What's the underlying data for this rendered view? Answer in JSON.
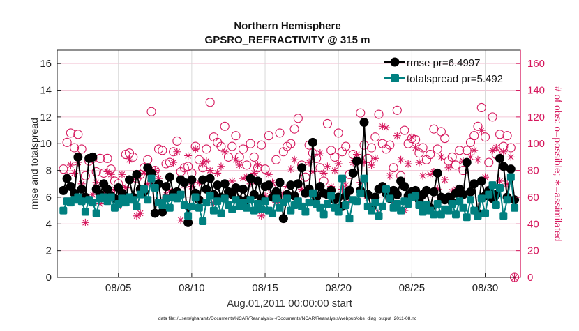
{
  "chart_data": {
    "type": "line",
    "title": [
      "Northern Hemisphere",
      "GPSRO_REFRACTIVITY @ 315 m"
    ],
    "xlabel": "Aug.01,2011 00:00:00 start",
    "ylabel": "rmse and totalspread",
    "ylabel_right": "# of obs: o=possible; ∗=assimilated",
    "footnote": "data file: /Users/gharamti/Documents/NCAR/Reanalysis/~/Documents/NCAR/Reanalysis/webpub/obs_diag_output_2011-08.nc",
    "x_units": "days since Aug.01,2011 00:00:00",
    "x_start_day": 0.25,
    "x_step_day": 0.25,
    "xlim": [
      -0.17,
      31.4
    ],
    "ylim": [
      0,
      17
    ],
    "ylim_right": [
      0,
      170
    ],
    "x_ticks": [
      {
        "day": 4,
        "label": "08/05"
      },
      {
        "day": 9,
        "label": "08/10"
      },
      {
        "day": 14,
        "label": "08/15"
      },
      {
        "day": 19,
        "label": "08/20"
      },
      {
        "day": 24,
        "label": "08/25"
      },
      {
        "day": 29,
        "label": "08/30"
      }
    ],
    "y_ticks": [
      "0",
      "2",
      "4",
      "6",
      "8",
      "10",
      "12",
      "14",
      "16"
    ],
    "y_ticks_right": [
      "0",
      "20",
      "40",
      "60",
      "80",
      "100",
      "120",
      "140",
      "160"
    ],
    "grid": true,
    "legend_position": "top-right",
    "colors": {
      "rmse": "#000000",
      "totalspread": "#008080",
      "obs": "#d6175d",
      "grid_h": "#f3c6d6",
      "grid_v": "#d9d9d9"
    },
    "series": [
      {
        "name": "rmse pr=6.4997",
        "axis": "left",
        "marker": "filled-circle",
        "values": [
          6.5,
          7.4,
          6.8,
          6.3,
          9.0,
          6.6,
          6.0,
          8.9,
          9.0,
          6.6,
          6.2,
          7.0,
          6.6,
          6.1,
          5.9,
          6.7,
          6.3,
          5.8,
          7.3,
          6.0,
          7.7,
          6.6,
          6.4,
          8.2,
          7.8,
          4.8,
          7.0,
          4.9,
          6.8,
          7.5,
          6.3,
          6.4,
          7.3,
          7.1,
          4.1,
          7.3,
          6.3,
          5.8,
          7.3,
          6.6,
          7.4,
          6.2,
          6.9,
          6.0,
          7.0,
          6.4,
          6.2,
          6.7,
          5.8,
          6.6,
          5.8,
          7.4,
          6.2,
          7.2,
          5.9,
          6.8,
          6.9,
          6.0,
          6.4,
          7.1,
          4.4,
          6.2,
          6.9,
          6.1,
          7.0,
          8.2,
          6.3,
          6.6,
          10.1,
          6.0,
          6.8,
          6.3,
          6.2,
          6.5,
          5.8,
          6.0,
          5.3,
          6.1,
          6.5,
          7.8,
          8.7,
          6.5,
          11.6,
          6.2,
          5.2,
          6.0,
          6.6,
          6.8,
          6.3,
          5.9,
          6.5,
          6.2,
          7.2,
          6.8,
          6.1,
          6.4,
          6.5,
          5.8,
          6.2,
          6.5,
          5.2,
          6.4,
          7.8,
          6.0,
          5.8,
          6.0,
          5.6,
          6.3,
          6.6,
          6.2,
          8.6,
          6.4,
          7.0,
          4.8,
          7.2,
          6.1,
          6.5,
          5.9,
          6.2,
          8.9,
          8.3,
          6.0,
          8.1,
          5.8
        ]
      },
      {
        "name": "totalspread pr=5.492",
        "axis": "left",
        "marker": "filled-square",
        "values": [
          5.0,
          5.7,
          5.6,
          5.8,
          6.0,
          5.7,
          4.9,
          5.8,
          5.6,
          4.8,
          5.9,
          6.0,
          5.7,
          6.0,
          5.2,
          5.5,
          5.9,
          5.6,
          6.0,
          5.8,
          5.3,
          6.2,
          6.6,
          5.8,
          7.4,
          6.7,
          5.6,
          5.4,
          5.9,
          5.2,
          6.0,
          5.9,
          6.2,
          5.4,
          4.6,
          5.3,
          6.0,
          5.2,
          4.2,
          5.6,
          6.1,
          5.0,
          5.7,
          4.8,
          5.9,
          5.4,
          5.1,
          5.8,
          5.3,
          5.6,
          5.2,
          5.8,
          5.0,
          5.5,
          5.1,
          5.7,
          5.0,
          4.8,
          5.9,
          5.2,
          5.6,
          5.9,
          5.0,
          5.4,
          5.7,
          5.3,
          4.9,
          5.6,
          6.3,
          5.5,
          5.2,
          4.7,
          5.5,
          6.1,
          5.2,
          4.9,
          7.4,
          5.4,
          4.4,
          5.8,
          5.7,
          6.3,
          7.4,
          5.3,
          5.0,
          5.6,
          4.6,
          5.3,
          6.6,
          5.9,
          5.2,
          5.5,
          5.0,
          5.7,
          5.5,
          6.0,
          6.1,
          5.4,
          4.9,
          5.4,
          5.0,
          4.7,
          5.5,
          4.7,
          5.1,
          5.0,
          5.5,
          4.7,
          5.7,
          5.2,
          4.5,
          5.8,
          5.0,
          4.6,
          5.9,
          4.8,
          6.2,
          6.9,
          5.4,
          6.7,
          4.6,
          5.8,
          7.5,
          5.2
        ]
      },
      {
        "name": "possible obs",
        "axis": "right",
        "marker": "open-circle",
        "values": [
          81,
          101,
          108,
          97,
          107,
          96,
          76,
          87,
          89,
          79,
          89,
          78,
          89,
          81,
          72,
          70,
          66,
          92,
          93,
          90,
          74,
          77,
          82,
          88,
          124,
          80,
          96,
          95,
          85,
          86,
          94,
          102,
          79,
          82,
          83,
          78,
          98,
          88,
          82,
          96,
          131,
          105,
          101,
          98,
          113,
          90,
          98,
          106,
          90,
          96,
          84,
          100,
          90,
          82,
          99,
          81,
          106,
          66,
          88,
          108,
          94,
          98,
          100,
          111,
          119,
          84,
          75,
          99,
          93,
          89,
          82,
          72,
          115,
          95,
          90,
          108,
          94,
          98,
          77,
          92,
          87,
          123,
          99,
          89,
          97,
          105,
          122,
          100,
          96,
          99,
          82,
          125,
          76,
          110,
          100,
          104,
          103,
          93,
          97,
          88,
          92,
          111,
          96,
          109,
          104,
          87,
          90,
          84,
          95,
          80,
          95,
          101,
          106,
          113,
          127,
          105,
          86,
          120,
          92,
          107,
          98,
          106,
          97,
          0
        ]
      },
      {
        "name": "assimilated obs",
        "axis": "right",
        "marker": "asterisk",
        "values": [
          65,
          76,
          84,
          78,
          86,
          70,
          41,
          59,
          62,
          71,
          55,
          63,
          79,
          77,
          66,
          53,
          77,
          67,
          88,
          74,
          46,
          48,
          78,
          70,
          69,
          80,
          74,
          57,
          62,
          65,
          86,
          94,
          43,
          69,
          91,
          68,
          96,
          71,
          85,
          87,
          80,
          56,
          78,
          83,
          94,
          62,
          72,
          88,
          84,
          74,
          75,
          70,
          78,
          84,
          46,
          61,
          77,
          71,
          56,
          62,
          62,
          68,
          81,
          88,
          70,
          66,
          51,
          86,
          79,
          60,
          93,
          78,
          83,
          68,
          80,
          85,
          66,
          69,
          57,
          86,
          92,
          71,
          86,
          59,
          84,
          89,
          48,
          113,
          112,
          76,
          56,
          106,
          88,
          50,
          85,
          105,
          97,
          86,
          76,
          65,
          77,
          79,
          66,
          90,
          73,
          82,
          64,
          66,
          62,
          87,
          85,
          90,
          95,
          88,
          110,
          75,
          66,
          95,
          97,
          72,
          94,
          70,
          90,
          0
        ]
      }
    ]
  }
}
